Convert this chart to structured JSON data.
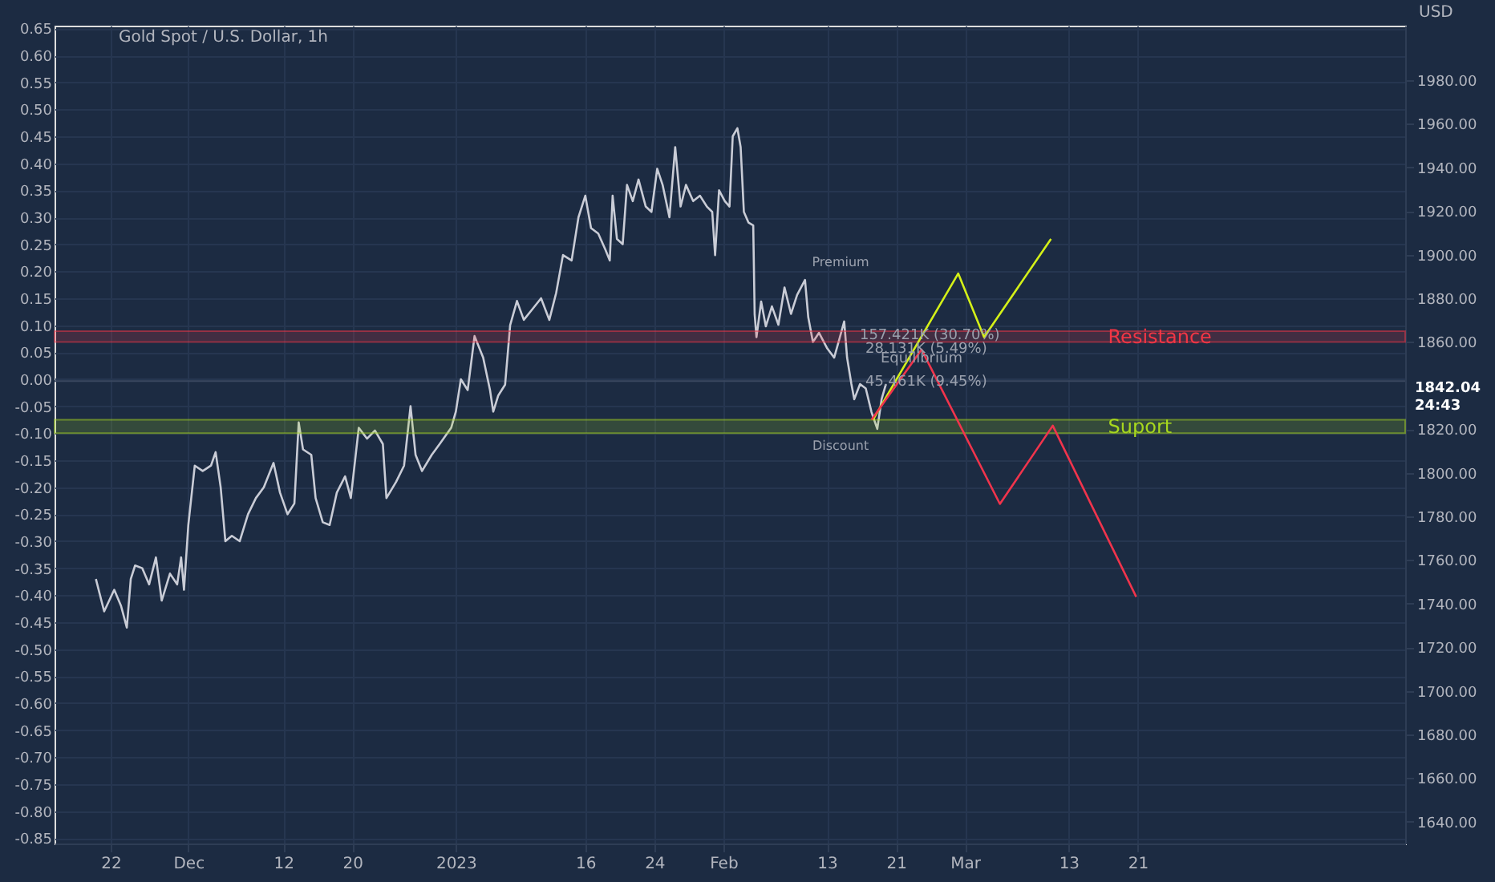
{
  "chart_data": {
    "type": "line",
    "title": "Gold Spot / U.S. Dollar, 1h",
    "y2label": "USD",
    "xlim": [
      "2022-11-15T12:00",
      "2023-04-21T00:00"
    ],
    "xticks": [
      {
        "value": "2022-11-22",
        "label": "22"
      },
      {
        "value": "2022-12-01",
        "label": "Dec"
      },
      {
        "value": "2022-12-12",
        "label": "12"
      },
      {
        "value": "2022-12-20",
        "label": "20"
      },
      {
        "value": "2023-01-01",
        "label": "2023"
      },
      {
        "value": "2023-01-16",
        "label": "16"
      },
      {
        "value": "2023-01-24",
        "label": "24"
      },
      {
        "value": "2023-02-01",
        "label": "Feb"
      },
      {
        "value": "2023-02-13",
        "label": "13"
      },
      {
        "value": "2023-02-21",
        "label": "21"
      },
      {
        "value": "2023-03-01",
        "label": "Mar"
      },
      {
        "value": "2023-03-13",
        "label": "13"
      },
      {
        "value": "2023-03-21",
        "label": "21"
      }
    ],
    "ylim": [
      -0.86,
      0.655
    ],
    "yticks": [
      {
        "value": -0.85,
        "label": "-0.85"
      },
      {
        "value": -0.8,
        "label": "-0.80"
      },
      {
        "value": -0.75,
        "label": "-0.75"
      },
      {
        "value": -0.7,
        "label": "-0.70"
      },
      {
        "value": -0.65,
        "label": "-0.65"
      },
      {
        "value": -0.6,
        "label": "-0.60"
      },
      {
        "value": -0.55,
        "label": "-0.55"
      },
      {
        "value": -0.5,
        "label": "-0.50"
      },
      {
        "value": -0.45,
        "label": "-0.45"
      },
      {
        "value": -0.4,
        "label": "-0.40"
      },
      {
        "value": -0.35,
        "label": "-0.35"
      },
      {
        "value": -0.3,
        "label": "-0.30"
      },
      {
        "value": -0.25,
        "label": "-0.25"
      },
      {
        "value": -0.2,
        "label": "-0.20"
      },
      {
        "value": -0.15,
        "label": "-0.15"
      },
      {
        "value": -0.1,
        "label": "-0.10"
      },
      {
        "value": -0.05,
        "label": "-0.05"
      },
      {
        "value": 0,
        "label": "0.00"
      },
      {
        "value": 0.05,
        "label": "0.05"
      },
      {
        "value": 0.1,
        "label": "0.10"
      },
      {
        "value": 0.15,
        "label": "0.15"
      },
      {
        "value": 0.2,
        "label": "0.20"
      },
      {
        "value": 0.25,
        "label": "0.25"
      },
      {
        "value": 0.3,
        "label": "0.30"
      },
      {
        "value": 0.35,
        "label": "0.35"
      },
      {
        "value": 0.4,
        "label": "0.40"
      },
      {
        "value": 0.45,
        "label": "0.45"
      },
      {
        "value": 0.5,
        "label": "0.50"
      },
      {
        "value": 0.55,
        "label": "0.55"
      },
      {
        "value": 0.6,
        "label": "0.60"
      },
      {
        "value": 0.65,
        "label": "0.65"
      }
    ],
    "y2lim": [
      1630,
      2005
    ],
    "y2ticks": [
      {
        "value": 1640,
        "label": "1640.00"
      },
      {
        "value": 1660,
        "label": "1660.00"
      },
      {
        "value": 1680,
        "label": "1680.00"
      },
      {
        "value": 1700,
        "label": "1700.00"
      },
      {
        "value": 1720,
        "label": "1720.00"
      },
      {
        "value": 1740,
        "label": "1740.00"
      },
      {
        "value": 1760,
        "label": "1760.00"
      },
      {
        "value": 1780,
        "label": "1780.00"
      },
      {
        "value": 1800,
        "label": "1800.00"
      },
      {
        "value": 1820,
        "label": "1820.00"
      },
      {
        "value": 1860,
        "label": "1860.00"
      },
      {
        "value": 1880,
        "label": "1880.00"
      },
      {
        "value": 1900,
        "label": "1900.00"
      },
      {
        "value": 1920,
        "label": "1920.00"
      },
      {
        "value": 1940,
        "label": "1940.00"
      },
      {
        "value": 1960,
        "label": "1960.00"
      },
      {
        "value": 1980,
        "label": "1980.00"
      }
    ],
    "grid": true,
    "marker": "none",
    "line_style": "solid",
    "series": [
      {
        "color": "#c9ccd6",
        "x": [
          "2022-11-20T07:00",
          "2022-11-21T06:00",
          "2022-11-22T10:00",
          "2022-11-23T05:00",
          "2022-11-23T21:00",
          "2022-11-24T08:00",
          "2022-11-24T20:00",
          "2022-11-25T16:00",
          "2022-11-26T11:00",
          "2022-11-27T06:00",
          "2022-11-27T22:00",
          "2022-11-28T21:00",
          "2022-11-29T17:00",
          "2022-11-30T04:00",
          "2022-11-30T12:00",
          "2022-12-01T00:00",
          "2022-12-01T18:00",
          "2022-12-02T16:00",
          "2022-12-03T15:00",
          "2022-12-04T04:00",
          "2022-12-04T18:00",
          "2022-12-05T07:00",
          "2022-12-06T01:00",
          "2022-12-06T23:00",
          "2022-12-07T22:00",
          "2022-12-08T20:00",
          "2022-12-09T18:00",
          "2022-12-10T21:00",
          "2022-12-11T15:00",
          "2022-12-12T12:00",
          "2022-12-13T07:00",
          "2022-12-13T19:00",
          "2022-12-14T07:00",
          "2022-12-15T06:00",
          "2022-12-15T18:00",
          "2022-12-16T14:00",
          "2022-12-17T09:00",
          "2022-12-18T05:00",
          "2022-12-19T04:00",
          "2022-12-19T20:00",
          "2022-12-20T18:00",
          "2022-12-21T17:00",
          "2022-12-22T15:00",
          "2022-12-23T13:00",
          "2022-12-23T23:00",
          "2022-12-25T02:00",
          "2022-12-26T00:00",
          "2022-12-26T18:00",
          "2022-12-27T08:00",
          "2022-12-28T02:00",
          "2022-12-29T05:00",
          "2022-12-30T03:00",
          "2022-12-31T11:00",
          "2023-01-01T00:00",
          "2023-01-01T14:00",
          "2023-01-02T09:00",
          "2023-01-03T04:00",
          "2023-01-04T04:00",
          "2023-01-04T23:00",
          "2023-01-05T08:00",
          "2023-01-05T22:00",
          "2023-01-06T17:00",
          "2023-01-07T07:00",
          "2023-01-08T02:00",
          "2023-01-08T21:00",
          "2023-01-09T21:00",
          "2023-01-10T21:00",
          "2023-01-11T20:00",
          "2023-01-12T15:00",
          "2023-01-13T10:00",
          "2023-01-14T10:00",
          "2023-01-15T05:00",
          "2023-01-16T00:00",
          "2023-01-16T16:00",
          "2023-01-17T12:00",
          "2023-01-18T08:00",
          "2023-01-18T20:00",
          "2023-01-19T04:00",
          "2023-01-19T16:00",
          "2023-01-20T08:00",
          "2023-01-20T20:00",
          "2023-01-21T12:00",
          "2023-01-22T04:00",
          "2023-01-23T00:00",
          "2023-01-23T16:00",
          "2023-01-24T08:00",
          "2023-01-24T23:00",
          "2023-01-25T18:00",
          "2023-01-26T10:00",
          "2023-01-27T01:00",
          "2023-01-27T16:00",
          "2023-01-28T12:00",
          "2023-01-29T07:00",
          "2023-01-30T02:00",
          "2023-01-30T17:00",
          "2023-01-31T01:00",
          "2023-01-31T12:00",
          "2023-02-01T04:00",
          "2023-02-01T17:00",
          "2023-02-02T02:00",
          "2023-02-02T15:00",
          "2023-02-03T00:00",
          "2023-02-03T09:00",
          "2023-02-03T22:00",
          "2023-02-04T11:00",
          "2023-02-04T15:00",
          "2023-02-04T20:00",
          "2023-02-05T09:00",
          "2023-02-05T22:00",
          "2023-02-06T15:00",
          "2023-02-07T09:00",
          "2023-02-08T02:00",
          "2023-02-08T20:00",
          "2023-02-09T13:00",
          "2023-02-10T11:00",
          "2023-02-10T20:00",
          "2023-02-11T09:00",
          "2023-02-12T02:00",
          "2023-02-13T00:00",
          "2023-02-13T20:00",
          "2023-02-14T12:00",
          "2023-02-15T00:00",
          "2023-02-15T08:00",
          "2023-02-15T20:00",
          "2023-02-16T04:00",
          "2023-02-16T20:00",
          "2023-02-17T12:00",
          "2023-02-18T04:00",
          "2023-02-18T20:00",
          "2023-02-19T08:00",
          "2023-02-19T20:00"
        ],
        "values": [
          -0.37,
          -0.43,
          -0.39,
          -0.42,
          -0.46,
          -0.37,
          -0.345,
          -0.35,
          -0.38,
          -0.33,
          -0.41,
          -0.36,
          -0.38,
          -0.33,
          -0.39,
          -0.27,
          -0.16,
          -0.17,
          -0.16,
          -0.135,
          -0.2,
          -0.3,
          -0.29,
          -0.3,
          -0.25,
          -0.22,
          -0.2,
          -0.155,
          -0.21,
          -0.25,
          -0.23,
          -0.08,
          -0.13,
          -0.14,
          -0.22,
          -0.265,
          -0.27,
          -0.21,
          -0.18,
          -0.22,
          -0.09,
          -0.11,
          -0.095,
          -0.12,
          -0.22,
          -0.19,
          -0.16,
          -0.05,
          -0.14,
          -0.17,
          -0.14,
          -0.12,
          -0.09,
          -0.06,
          0.0,
          -0.02,
          0.08,
          0.04,
          -0.02,
          -0.06,
          -0.03,
          -0.01,
          0.1,
          0.145,
          0.11,
          0.13,
          0.15,
          0.11,
          0.16,
          0.23,
          0.22,
          0.3,
          0.34,
          0.28,
          0.27,
          0.24,
          0.22,
          0.34,
          0.26,
          0.25,
          0.36,
          0.33,
          0.37,
          0.32,
          0.31,
          0.39,
          0.36,
          0.3,
          0.43,
          0.32,
          0.36,
          0.33,
          0.34,
          0.32,
          0.31,
          0.23,
          0.35,
          0.33,
          0.32,
          0.45,
          0.465,
          0.43,
          0.31,
          0.29,
          0.285,
          0.12,
          0.078,
          0.144,
          0.098,
          0.135,
          0.101,
          0.17,
          0.121,
          0.156,
          0.184,
          0.115,
          0.069,
          0.086,
          0.058,
          0.04,
          0.078,
          0.107,
          0.04,
          -0.009,
          -0.037,
          -0.009,
          -0.017,
          -0.061,
          -0.092,
          -0.037,
          -0.009
        ]
      },
      {
        "color": "#d4f018",
        "x": [
          "2023-02-18T08:00",
          "2023-02-28T05:00",
          "2023-03-03T05:00",
          "2023-03-10T23:00"
        ],
        "values": [
          -0.075,
          0.196,
          0.078,
          0.26
        ]
      },
      {
        "color": "#f0344c",
        "x": [
          "2023-02-18T04:00",
          "2023-02-23T23:00",
          "2023-03-05T01:00",
          "2023-03-11T04:00",
          "2023-03-20T20:00"
        ],
        "values": [
          -0.075,
          0.055,
          -0.231,
          -0.086,
          -0.403
        ]
      }
    ],
    "bands": [
      {
        "axis": "y",
        "from": -0.1,
        "to": -0.075,
        "label": "Suport",
        "color": "#a8d81e"
      },
      {
        "axis": "y",
        "from": 0.069,
        "to": 0.089,
        "label": "Resistance",
        "color": "#f23645"
      }
    ],
    "ref_lines": [
      {
        "axis": "y2",
        "value": 1842.04,
        "label": "1842.04\n24:43",
        "color": "#3a4860"
      }
    ],
    "annotations": [
      "Premium",
      "Discount",
      {
        "text": "Equilibrium",
        "x": "2023-02-23T23:00",
        "y": 0.04
      },
      {
        "text": "157.421K (30.70%)",
        "x": "2023-02-24T22:00",
        "y": 0.083
      },
      {
        "text": "28.131K (5.49%)",
        "x": "2023-02-24T12:00",
        "y": 0.058
      },
      {
        "text": "45.461K (9.45%)",
        "x": "2023-02-24T12:00",
        "y": -0.003
      }
    ]
  }
}
